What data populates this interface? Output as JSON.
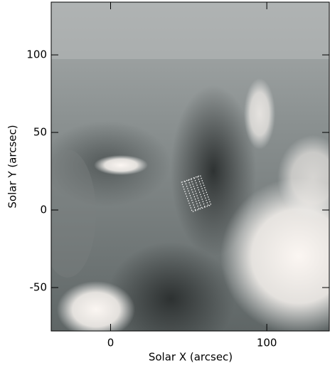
{
  "chart_data": {
    "type": "image",
    "xlabel": "Solar X (arcsec)",
    "ylabel": "Solar Y (arcsec)",
    "xlim": [
      -38,
      140
    ],
    "ylim": [
      -78,
      134
    ],
    "xticks": [
      0,
      100
    ],
    "yticks": [
      -50,
      0,
      50,
      100
    ]
  }
}
